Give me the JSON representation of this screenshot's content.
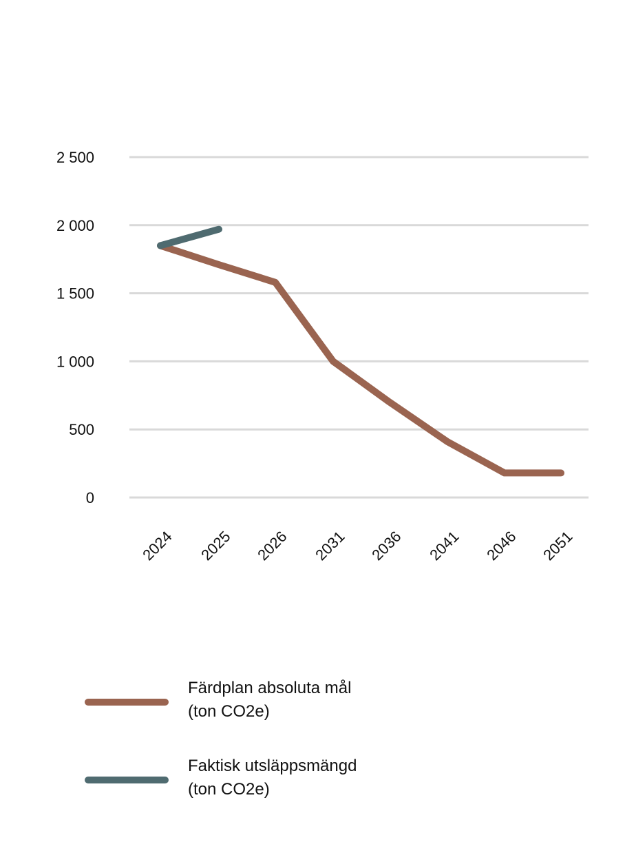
{
  "chart_data": {
    "type": "line",
    "title": "",
    "xlabel": "",
    "ylabel": "",
    "categories": [
      "2024",
      "2025",
      "2026",
      "2031",
      "2036",
      "2041",
      "2046",
      "2051"
    ],
    "ylim": [
      0,
      2500
    ],
    "yticks": [
      0,
      500,
      1000,
      1500,
      2000,
      2500
    ],
    "ytick_labels": [
      "0",
      "500",
      "1 000",
      "1 500",
      "2 000",
      "2 500"
    ],
    "grid": true,
    "legend_position": "bottom-left",
    "series": [
      {
        "name": "Färdplan absoluta mål",
        "unit": "(ton CO2e)",
        "color": "#9A6450",
        "values": [
          1850,
          1710,
          1580,
          1000,
          700,
          410,
          180,
          180
        ]
      },
      {
        "name": "Faktisk utsläppsmängd",
        "unit": "(ton CO2e)",
        "color": "#4F6B70",
        "values": [
          1850,
          1970,
          null,
          null,
          null,
          null,
          null,
          null
        ]
      }
    ]
  }
}
